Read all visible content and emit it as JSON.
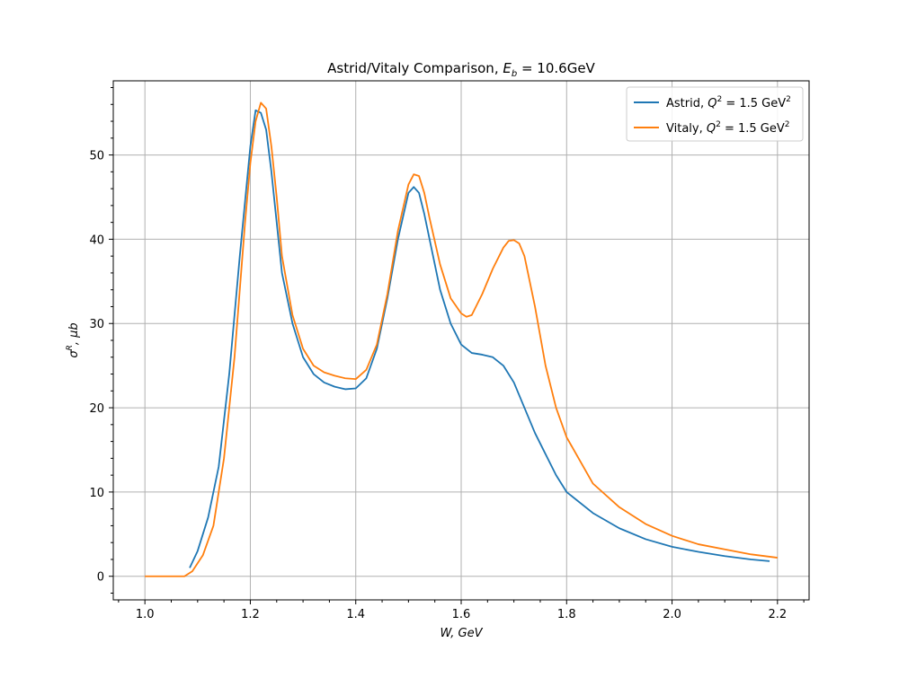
{
  "chart_data": {
    "type": "line",
    "title": "Astrid/Vitaly Comparison, E_b = 10.6GeV",
    "title_parts": {
      "prefix": "Astrid/Vitaly Comparison, ",
      "sym": "E",
      "sub": "b",
      "suffix": " = 10.6GeV"
    },
    "xlabel": "W, GeV",
    "ylabel": "σR, μb",
    "ylabel_parts": {
      "sym": "σ",
      "sup": "R",
      "suffix": ", μb"
    },
    "xlim": [
      0.94,
      2.26
    ],
    "ylim": [
      -2.8,
      58.8
    ],
    "x_ticks": [
      1.0,
      1.2,
      1.4,
      1.6,
      1.8,
      2.0,
      2.2
    ],
    "x_tick_labels": [
      "1.0",
      "1.2",
      "1.4",
      "1.6",
      "1.8",
      "2.0",
      "2.2"
    ],
    "y_ticks": [
      0,
      10,
      20,
      30,
      40,
      50
    ],
    "y_tick_labels": [
      "0",
      "10",
      "20",
      "30",
      "40",
      "50"
    ],
    "grid": true,
    "legend_position": "top-right",
    "series": [
      {
        "name": "Astrid, Q2 = 1.5 GeV2",
        "label_parts": {
          "prefix": "Astrid, ",
          "sym": "Q",
          "sup": "2",
          "mid": " = 1.5 GeV",
          "sup2": "2"
        },
        "color": "#1f77b4",
        "x": [
          1.085,
          1.1,
          1.12,
          1.14,
          1.16,
          1.18,
          1.2,
          1.21,
          1.22,
          1.23,
          1.24,
          1.25,
          1.26,
          1.28,
          1.3,
          1.32,
          1.34,
          1.36,
          1.38,
          1.4,
          1.42,
          1.44,
          1.46,
          1.48,
          1.5,
          1.51,
          1.52,
          1.53,
          1.54,
          1.56,
          1.58,
          1.6,
          1.62,
          1.64,
          1.66,
          1.68,
          1.7,
          1.72,
          1.74,
          1.76,
          1.78,
          1.8,
          1.85,
          1.9,
          1.95,
          2.0,
          2.05,
          2.1,
          2.15,
          2.185
        ],
        "y": [
          1.0,
          3.0,
          7.0,
          13.0,
          24.0,
          38.0,
          51.0,
          55.3,
          55.0,
          53.0,
          48.0,
          42.0,
          36.0,
          30.0,
          26.0,
          24.0,
          23.0,
          22.5,
          22.2,
          22.3,
          23.5,
          27.0,
          33.0,
          40.0,
          45.5,
          46.2,
          45.5,
          43.0,
          40.0,
          34.0,
          30.0,
          27.5,
          26.5,
          26.3,
          26.0,
          25.0,
          23.0,
          20.0,
          17.0,
          14.5,
          12.0,
          10.0,
          7.5,
          5.7,
          4.4,
          3.5,
          2.9,
          2.4,
          2.0,
          1.8
        ]
      },
      {
        "name": "Vitaly, Q2 = 1.5 GeV2",
        "label_parts": {
          "prefix": "Vitaly, ",
          "sym": "Q",
          "sup": "2",
          "mid": " = 1.5 GeV",
          "sup2": "2"
        },
        "color": "#ff7f0e",
        "x": [
          1.0,
          1.02,
          1.04,
          1.06,
          1.075,
          1.09,
          1.11,
          1.13,
          1.15,
          1.17,
          1.19,
          1.2,
          1.21,
          1.22,
          1.23,
          1.24,
          1.25,
          1.26,
          1.28,
          1.3,
          1.32,
          1.34,
          1.36,
          1.38,
          1.4,
          1.42,
          1.44,
          1.46,
          1.48,
          1.5,
          1.51,
          1.52,
          1.53,
          1.54,
          1.56,
          1.58,
          1.6,
          1.61,
          1.62,
          1.64,
          1.66,
          1.68,
          1.69,
          1.7,
          1.71,
          1.72,
          1.74,
          1.76,
          1.78,
          1.8,
          1.85,
          1.9,
          1.95,
          2.0,
          2.05,
          2.1,
          2.15,
          2.2
        ],
        "y": [
          0,
          0,
          0,
          0,
          0,
          0.6,
          2.5,
          6.0,
          14.0,
          26.0,
          42.0,
          49.0,
          54.0,
          56.2,
          55.5,
          51.0,
          45.0,
          38.0,
          31.0,
          27.0,
          25.0,
          24.2,
          23.8,
          23.5,
          23.4,
          24.5,
          27.5,
          33.5,
          41.0,
          46.5,
          47.7,
          47.5,
          45.5,
          42.5,
          37.0,
          33.0,
          31.2,
          30.8,
          31.0,
          33.5,
          36.5,
          39.0,
          39.8,
          39.9,
          39.5,
          38.0,
          32.0,
          25.0,
          20.0,
          16.5,
          11.0,
          8.2,
          6.2,
          4.8,
          3.8,
          3.2,
          2.6,
          2.2
        ]
      }
    ]
  }
}
